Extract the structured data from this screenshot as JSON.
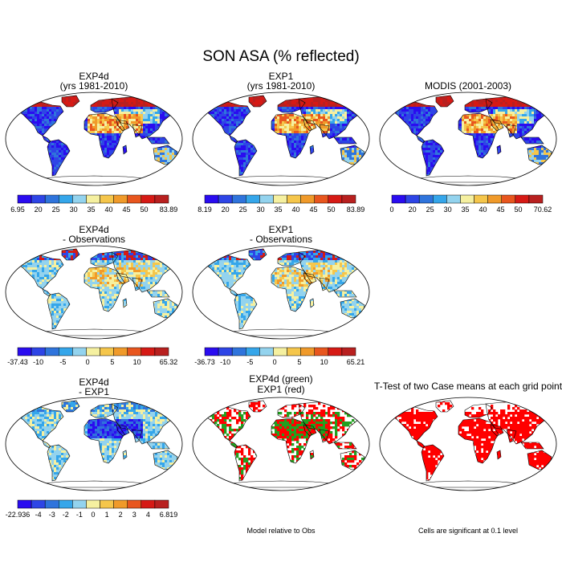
{
  "figure_title": "SON ASA (% reflected)",
  "panels": [
    {
      "id": "exp4d",
      "title": [
        "EXP4d",
        "(yrs 1981-2010)"
      ],
      "field": "climo_exp4d"
    },
    {
      "id": "exp1",
      "title": [
        "EXP1",
        "(yrs 1981-2010)"
      ],
      "field": "climo_exp1"
    },
    {
      "id": "modis",
      "title": [
        "MODIS (2001-2003)"
      ],
      "field": "climo_modis"
    },
    {
      "id": "exp4d-obs",
      "title": [
        "EXP4d",
        "- Observations"
      ],
      "field": "diff_exp4d_obs"
    },
    {
      "id": "exp1-obs",
      "title": [
        "EXP1",
        "- Observations"
      ],
      "field": "diff_exp1_obs"
    },
    {
      "id": "exp4d-exp1",
      "title": [
        "EXP4d",
        "- EXP1"
      ],
      "field": "diff_exp4d_exp1"
    },
    {
      "id": "closer",
      "title": [
        "EXP4d (green)",
        "EXP1 (red)"
      ],
      "field": "closer_green_red"
    },
    {
      "id": "ttest",
      "title": [
        "T-Test of two Case means at each grid point"
      ],
      "field": "ttest_red"
    }
  ],
  "colorbars": [
    {
      "id": "exp4d",
      "labels": [
        "6.95",
        "20",
        "25",
        "30",
        "35",
        "40",
        "45",
        "50",
        "83.89"
      ]
    },
    {
      "id": "exp1",
      "labels": [
        "8.19",
        "20",
        "25",
        "30",
        "35",
        "40",
        "45",
        "50",
        "83.89"
      ]
    },
    {
      "id": "modis",
      "labels": [
        "0",
        "20",
        "25",
        "30",
        "35",
        "40",
        "45",
        "50",
        "70.62"
      ]
    },
    {
      "id": "exp4d-obs",
      "labels": [
        "-37.43",
        "-10",
        "-5",
        "0",
        "5",
        "10",
        "65.32"
      ]
    },
    {
      "id": "exp1-obs",
      "labels": [
        "-36.73",
        "-10",
        "-5",
        "0",
        "5",
        "10",
        "65.21"
      ]
    },
    {
      "id": "exp4d-exp1",
      "labels": [
        "-22.936",
        "-4",
        "-3",
        "-2",
        "-1",
        "0",
        "1",
        "2",
        "3",
        "4",
        "6.819"
      ]
    }
  ],
  "palette": {
    "seq": [
      "#2a0cf0",
      "#2e45e6",
      "#2f74dc",
      "#35a6ea",
      "#93d3ee",
      "#f5f0a0",
      "#f5c64b",
      "#f09a2a",
      "#e8561e",
      "#d61a15",
      "#b8201f"
    ],
    "div": [
      "#2a0cf0",
      "#2e45e6",
      "#2f74dc",
      "#35a6ea",
      "#93d3ee",
      "#f5f0a0",
      "#f5c64b",
      "#f09a2a",
      "#e8561e",
      "#d61a15",
      "#b8201f"
    ],
    "red": "#ff0000",
    "green": "#22a020"
  },
  "notes": {
    "model_relative": "Model relative to Obs",
    "significance": "Cells are significant at 0.1 level"
  }
}
